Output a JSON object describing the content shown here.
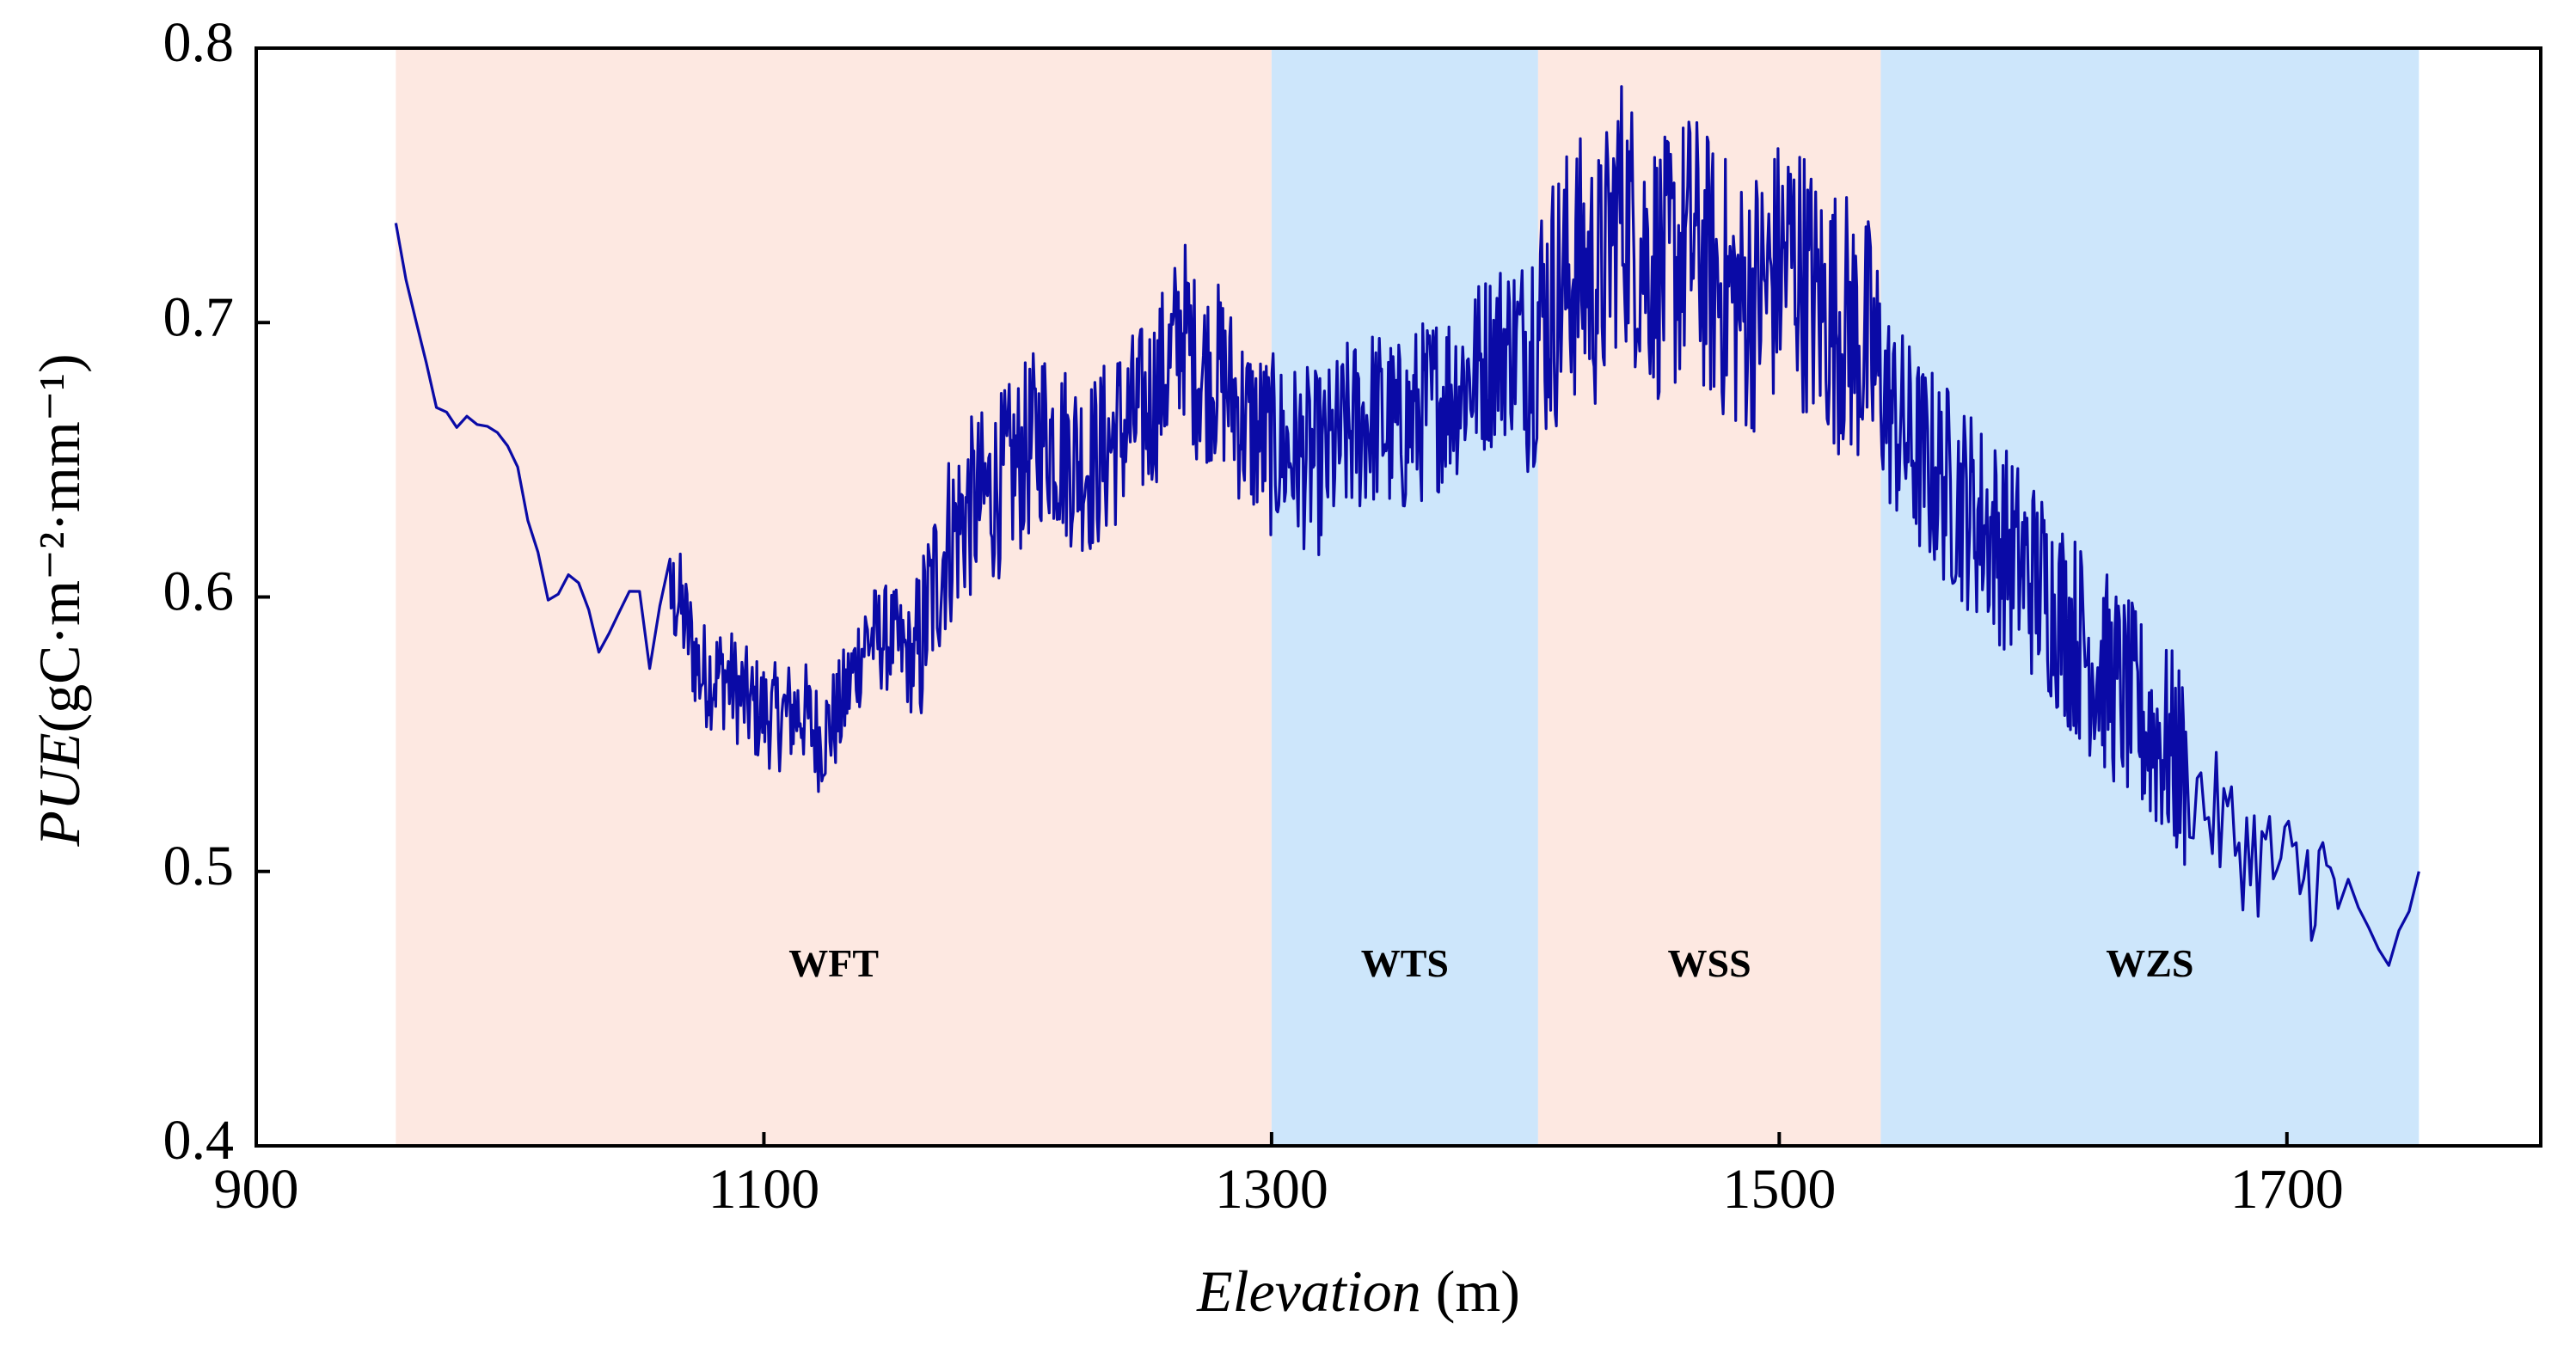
{
  "chart_data": {
    "type": "line",
    "xlabel": "Elevation",
    "xlabel_unit": " (m)",
    "ylabel_var": "PUE",
    "ylabel_unit": "(gC·m⁻²·mm⁻¹)",
    "xlim": [
      900,
      1800
    ],
    "ylim": [
      0.4,
      0.8
    ],
    "xticks": [
      900,
      1100,
      1300,
      1500,
      1700
    ],
    "xtick_labels": [
      "900",
      "1100",
      "1300",
      "1500",
      "1700"
    ],
    "yticks": [
      0.4,
      0.5,
      0.6,
      0.7,
      0.8
    ],
    "ytick_labels": [
      "0.4",
      "0.5",
      "0.6",
      "0.7",
      "0.8"
    ],
    "grid": false,
    "line_color": "#0a0aa6",
    "zones": [
      {
        "name": "WFT",
        "x_start": 955,
        "x_end": 1300,
        "color": "#fde8e1"
      },
      {
        "name": "WTS",
        "x_start": 1300,
        "x_end": 1405,
        "color": "#cde6fb"
      },
      {
        "name": "WSS",
        "x_start": 1405,
        "x_end": 1540,
        "color": "#fde8e1"
      },
      {
        "name": "WZS",
        "x_start": 1540,
        "x_end": 1752,
        "color": "#cde6fb"
      }
    ],
    "zone_label_y": 0.465,
    "series": [
      {
        "name": "PUE",
        "x": [
          955,
          970,
          985,
          1000,
          1015,
          1025,
          1035,
          1042,
          1050,
          1055,
          1060,
          1066,
          1075,
          1085,
          1095,
          1105,
          1115,
          1122,
          1130,
          1140,
          1150,
          1160,
          1165,
          1172,
          1180,
          1190,
          1200,
          1210,
          1220,
          1230,
          1240,
          1250,
          1260,
          1265,
          1270,
          1280,
          1290,
          1300,
          1310,
          1320,
          1330,
          1340,
          1350,
          1360,
          1370,
          1380,
          1390,
          1400,
          1410,
          1420,
          1430,
          1437,
          1445,
          1455,
          1465,
          1475,
          1485,
          1495,
          1505,
          1515,
          1525,
          1535,
          1545,
          1555,
          1565,
          1575,
          1585,
          1595,
          1605,
          1615,
          1625,
          1635,
          1645,
          1655,
          1665,
          1675,
          1685,
          1695,
          1705,
          1715,
          1720,
          1725,
          1732,
          1740,
          1752
        ],
        "y": [
          0.735,
          0.668,
          0.662,
          0.656,
          0.601,
          0.607,
          0.583,
          0.59,
          0.611,
          0.575,
          0.598,
          0.6,
          0.572,
          0.571,
          0.56,
          0.556,
          0.559,
          0.548,
          0.558,
          0.585,
          0.585,
          0.575,
          0.596,
          0.62,
          0.631,
          0.638,
          0.648,
          0.661,
          0.652,
          0.648,
          0.66,
          0.667,
          0.685,
          0.7,
          0.684,
          0.681,
          0.663,
          0.655,
          0.652,
          0.648,
          0.66,
          0.666,
          0.66,
          0.668,
          0.675,
          0.682,
          0.691,
          0.693,
          0.707,
          0.72,
          0.715,
          0.745,
          0.728,
          0.718,
          0.73,
          0.716,
          0.706,
          0.713,
          0.726,
          0.706,
          0.701,
          0.69,
          0.665,
          0.651,
          0.642,
          0.632,
          0.622,
          0.612,
          0.602,
          0.588,
          0.576,
          0.565,
          0.553,
          0.543,
          0.528,
          0.516,
          0.508,
          0.502,
          0.498,
          0.498,
          0.486,
          0.5,
          0.475,
          0.462,
          0.5
        ]
      }
    ]
  }
}
